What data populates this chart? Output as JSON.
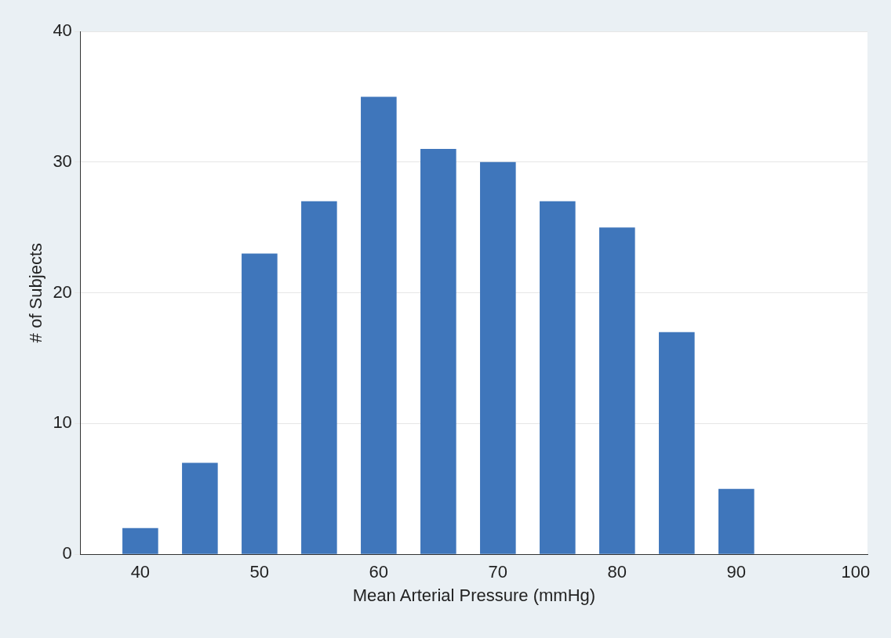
{
  "chart_data": {
    "type": "bar",
    "xlabel": "Mean Arterial Pressure (mmHg)",
    "ylabel": "# of Subjects",
    "x": [
      40,
      45,
      50,
      55,
      60,
      65,
      70,
      75,
      80,
      85,
      90
    ],
    "values": [
      2,
      7,
      23,
      27,
      35,
      31,
      30,
      27,
      25,
      17,
      5
    ],
    "color": "#3f76bb",
    "xlim": [
      35,
      101
    ],
    "xticks": [
      40,
      50,
      60,
      70,
      80,
      90,
      100
    ],
    "ylim": [
      0,
      40
    ],
    "yticks": [
      0,
      10,
      20,
      30,
      40
    ],
    "grid": "y"
  }
}
